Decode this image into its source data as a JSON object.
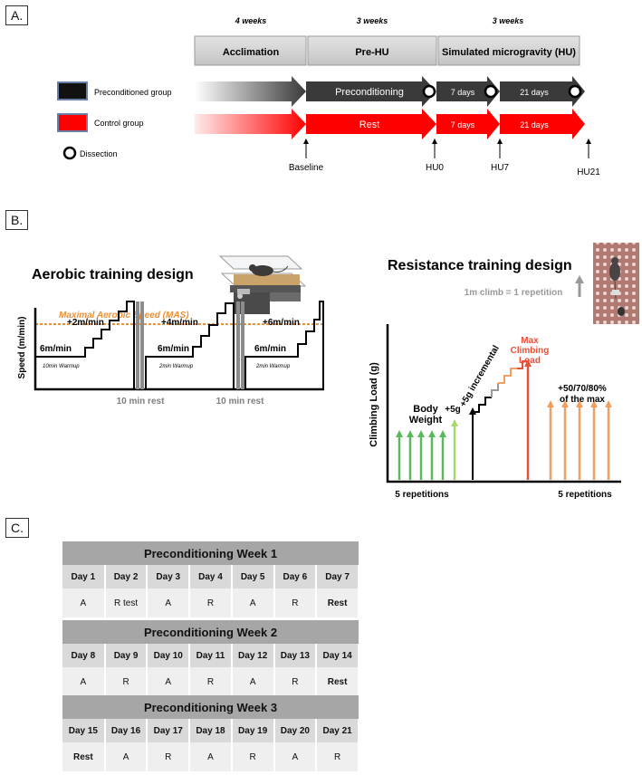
{
  "panels": {
    "a": "A.",
    "b": "B.",
    "c": "C."
  },
  "timeline": {
    "phase_durations": [
      "4 weeks",
      "3 weeks",
      "3 weeks"
    ],
    "phases": [
      "Acclimation",
      "Pre-HU",
      "Simulated microgravity (HU)"
    ],
    "groups": [
      {
        "label": "Preconditioned group",
        "color": "#3a3a3a"
      },
      {
        "label": "Control group",
        "color": "#ff0000"
      }
    ],
    "dissection_label": "Dissection",
    "precond_phase_label": "Preconditioning",
    "rest_phase_label": "Rest",
    "hu_short": "7 days",
    "hu_long": "21 days",
    "timepoints": [
      "Baseline",
      "HU0",
      "HU7",
      "HU21"
    ]
  },
  "aerobic": {
    "title": "Aerobic training design",
    "mas_label": "Maximal Aerobic Speed (MAS)",
    "mas_color": "#e8913a",
    "y_axis": "Speed (m/min)",
    "start_speed": "6m/min",
    "warmups": [
      "10min Warmup",
      "2min Warmup",
      "2min Warmup"
    ],
    "increments": [
      "+2m/min",
      "+4m/min",
      "+6m/min"
    ],
    "rest": "10 min rest"
  },
  "resistance": {
    "title": "Resistance training design",
    "rep_note": "1m climb  = 1 repetition",
    "y_axis": "Climbing Load (g)",
    "body_weight": "Body\nWeight",
    "plus5": "+5g",
    "incremental": "+5g incremental",
    "max_load": "Max\nClimbing\nLoad",
    "percent_max": "+50/70/80%\nof the max",
    "reps_left": "5 repetitions",
    "reps_right": "5 repetitions",
    "colors": {
      "green": "#5cb85c",
      "light_green": "#a6d96a",
      "orange": "#f0a060",
      "red": "#e8503a"
    }
  },
  "schedule": {
    "weeks": [
      {
        "title": "Preconditioning Week 1",
        "days": [
          "Day 1",
          "Day 2",
          "Day 3",
          "Day 4",
          "Day 5",
          "Day 6",
          "Day 7"
        ],
        "acts": [
          "A",
          "R test",
          "A",
          "R",
          "A",
          "R",
          "Rest"
        ]
      },
      {
        "title": "Preconditioning Week 2",
        "days": [
          "Day 8",
          "Day 9",
          "Day 10",
          "Day 11",
          "Day 12",
          "Day 13",
          "Day 14"
        ],
        "acts": [
          "A",
          "R",
          "A",
          "R",
          "A",
          "R",
          "Rest"
        ]
      },
      {
        "title": "Preconditioning Week 3",
        "days": [
          "Day 15",
          "Day 16",
          "Day 17",
          "Day 18",
          "Day 19",
          "Day 20",
          "Day 21"
        ],
        "acts": [
          "Rest",
          "A",
          "R",
          "A",
          "R",
          "A",
          "R"
        ]
      }
    ]
  }
}
